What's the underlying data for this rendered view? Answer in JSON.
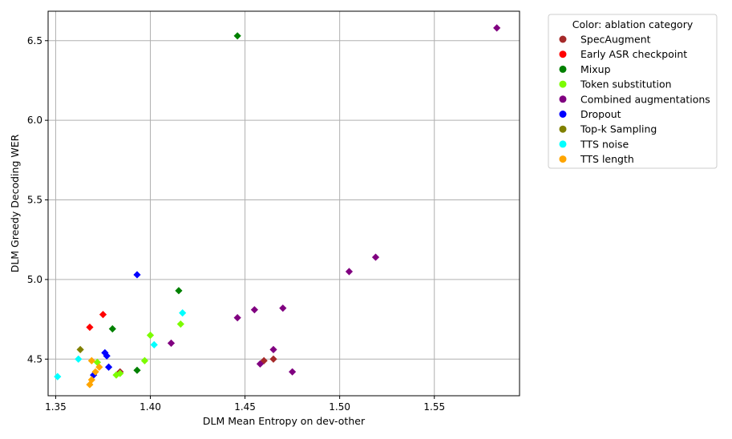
{
  "chart_data": {
    "type": "scatter",
    "xlabel": "DLM Mean Entropy on dev-other",
    "ylabel": "DLM Greedy Decoding WER",
    "xlim": [
      1.346,
      1.595
    ],
    "ylim": [
      4.27,
      6.685
    ],
    "xticks": [
      1.35,
      1.4,
      1.45,
      1.5,
      1.55
    ],
    "xtick_labels": [
      "1.35",
      "1.40",
      "1.45",
      "1.50",
      "1.55"
    ],
    "yticks": [
      4.5,
      5.0,
      5.5,
      6.0,
      6.5
    ],
    "ytick_labels": [
      "4.5",
      "5.0",
      "5.5",
      "6.0",
      "6.5"
    ],
    "grid": true,
    "marker": "diamond",
    "legend": {
      "title": "Color: ablation category",
      "placement": "outside-upper-right"
    },
    "series": [
      {
        "name": "SpecAugment",
        "color": "#a52a2a",
        "points": [
          [
            1.384,
            4.42
          ],
          [
            1.46,
            4.49
          ],
          [
            1.465,
            4.5
          ]
        ]
      },
      {
        "name": "Early ASR checkpoint",
        "color": "#ff0000",
        "points": [
          [
            1.368,
            4.7
          ],
          [
            1.375,
            4.78
          ]
        ]
      },
      {
        "name": "Mixup",
        "color": "#008000",
        "points": [
          [
            1.38,
            4.69
          ],
          [
            1.393,
            4.43
          ],
          [
            1.415,
            4.93
          ],
          [
            1.446,
            6.53
          ]
        ]
      },
      {
        "name": "Token substitution",
        "color": "#7cfc00",
        "points": [
          [
            1.372,
            4.48
          ],
          [
            1.382,
            4.4
          ],
          [
            1.384,
            4.41
          ],
          [
            1.397,
            4.49
          ],
          [
            1.4,
            4.65
          ],
          [
            1.416,
            4.72
          ]
        ]
      },
      {
        "name": "Combined augmentations",
        "color": "#800080",
        "points": [
          [
            1.411,
            4.6
          ],
          [
            1.446,
            4.76
          ],
          [
            1.455,
            4.81
          ],
          [
            1.458,
            4.47
          ],
          [
            1.465,
            4.56
          ],
          [
            1.47,
            4.82
          ],
          [
            1.475,
            4.42
          ],
          [
            1.505,
            5.05
          ],
          [
            1.519,
            5.14
          ],
          [
            1.583,
            6.58
          ]
        ]
      },
      {
        "name": "Dropout",
        "color": "#0000ff",
        "points": [
          [
            1.37,
            4.4
          ],
          [
            1.376,
            4.54
          ],
          [
            1.377,
            4.52
          ],
          [
            1.378,
            4.45
          ],
          [
            1.393,
            5.03
          ]
        ]
      },
      {
        "name": "Top-k Sampling",
        "color": "#808000",
        "points": [
          [
            1.363,
            4.56
          ]
        ]
      },
      {
        "name": "TTS noise",
        "color": "#00ffff",
        "points": [
          [
            1.351,
            4.39
          ],
          [
            1.362,
            4.5
          ],
          [
            1.402,
            4.59
          ],
          [
            1.417,
            4.79
          ]
        ]
      },
      {
        "name": "TTS length",
        "color": "#ffa500",
        "points": [
          [
            1.368,
            4.34
          ],
          [
            1.369,
            4.37
          ],
          [
            1.369,
            4.49
          ],
          [
            1.371,
            4.42
          ],
          [
            1.373,
            4.45
          ]
        ]
      }
    ]
  }
}
